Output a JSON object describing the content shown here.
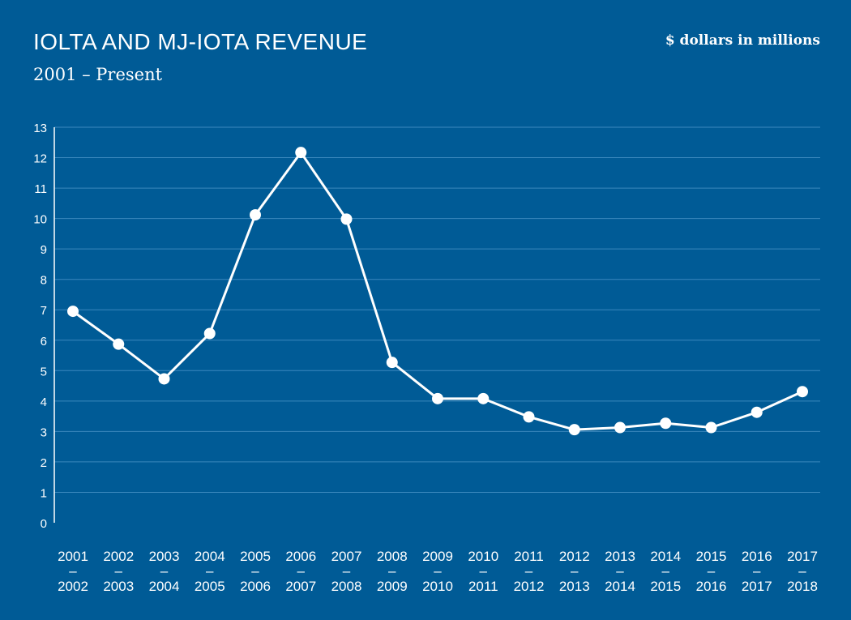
{
  "chart_data": {
    "type": "line",
    "title": "IOLTA AND MJ-IOTA REVENUE",
    "subtitle": "2001 – Present",
    "unit_note": "$ dollars in millions",
    "categories": [
      [
        "2001",
        "–",
        "2002"
      ],
      [
        "2002",
        "–",
        "2003"
      ],
      [
        "2003",
        "–",
        "2004"
      ],
      [
        "2004",
        "–",
        "2005"
      ],
      [
        "2005",
        "–",
        "2006"
      ],
      [
        "2006",
        "–",
        "2007"
      ],
      [
        "2007",
        "–",
        "2008"
      ],
      [
        "2008",
        "–",
        "2009"
      ],
      [
        "2009",
        "–",
        "2010"
      ],
      [
        "2010",
        "–",
        "2011"
      ],
      [
        "2011",
        "–",
        "2012"
      ],
      [
        "2012",
        "–",
        "2013"
      ],
      [
        "2013",
        "–",
        "2014"
      ],
      [
        "2014",
        "–",
        "2015"
      ],
      [
        "2015",
        "–",
        "2016"
      ],
      [
        "2016",
        "–",
        "2017"
      ],
      [
        "2017",
        "–",
        "2018"
      ]
    ],
    "values": [
      6.95,
      5.87,
      4.73,
      6.22,
      10.12,
      12.17,
      9.98,
      5.27,
      4.08,
      4.08,
      3.48,
      3.06,
      3.13,
      3.27,
      3.13,
      3.63,
      4.31
    ],
    "ylim": [
      0,
      13
    ],
    "yticks": [
      "0",
      "1",
      "2",
      "3",
      "4",
      "5",
      "6",
      "7",
      "8",
      "9",
      "10",
      "11",
      "12",
      "13"
    ],
    "grid": true,
    "colors": {
      "background": "#005b96",
      "line": "#ffffff",
      "grid": "#3b88bd"
    }
  }
}
